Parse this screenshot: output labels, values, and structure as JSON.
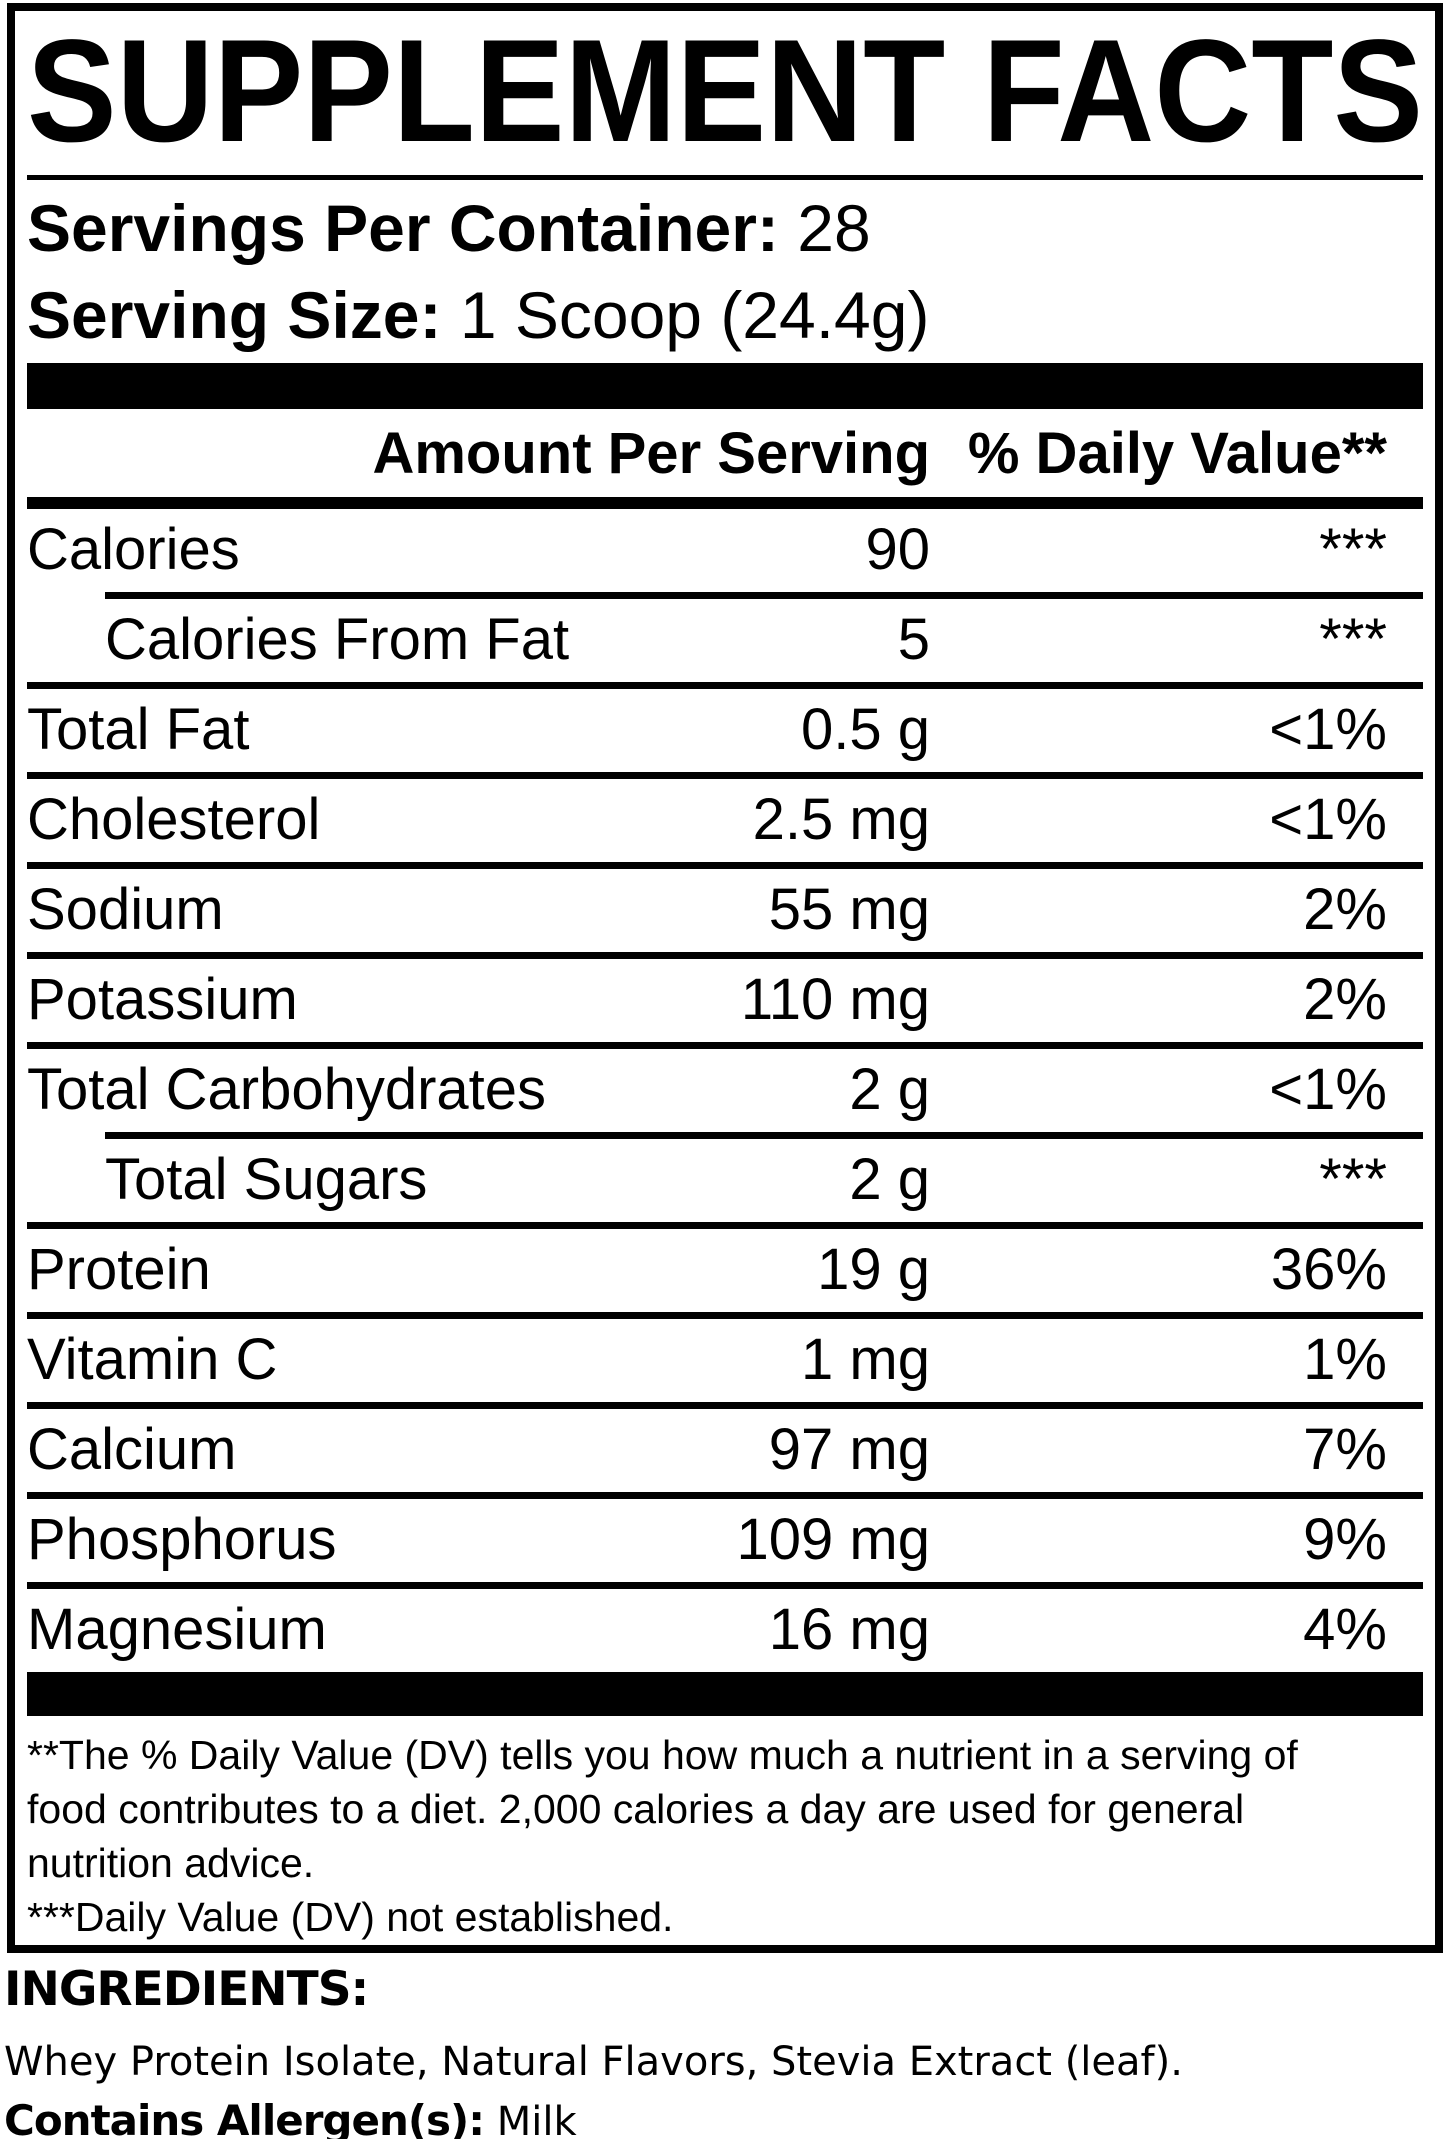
{
  "title": "SUPPLEMENT FACTS",
  "serving_info": {
    "servings_per_container_label": "Servings Per Container:",
    "servings_per_container_value": "28",
    "serving_size_label": "Serving Size:",
    "serving_size_value": "1 Scoop (24.4g)"
  },
  "table": {
    "header": {
      "amount": "Amount Per Serving",
      "daily_value": "% Daily Value**"
    },
    "rows": [
      {
        "label": "Calories",
        "amount": "90",
        "dv": "***",
        "indent": false
      },
      {
        "label": "Calories From Fat",
        "amount": "5",
        "dv": "***",
        "indent": true
      },
      {
        "label": "Total Fat",
        "amount": "0.5 g",
        "dv": "<1%",
        "indent": false
      },
      {
        "label": "Cholesterol",
        "amount": "2.5 mg",
        "dv": "<1%",
        "indent": false
      },
      {
        "label": "Sodium",
        "amount": "55 mg",
        "dv": "2%",
        "indent": false
      },
      {
        "label": "Potassium",
        "amount": "110 mg",
        "dv": "2%",
        "indent": false
      },
      {
        "label": "Total Carbohydrates",
        "amount": "2 g",
        "dv": "<1%",
        "indent": false
      },
      {
        "label": "Total Sugars",
        "amount": "2 g",
        "dv": "***",
        "indent": true
      },
      {
        "label": "Protein",
        "amount": "19 g",
        "dv": "36%",
        "indent": false
      },
      {
        "label": "Vitamin C",
        "amount": "1 mg",
        "dv": "1%",
        "indent": false
      },
      {
        "label": "Calcium",
        "amount": "97 mg",
        "dv": "7%",
        "indent": false
      },
      {
        "label": "Phosphorus",
        "amount": "109 mg",
        "dv": "9%",
        "indent": false
      },
      {
        "label": "Magnesium",
        "amount": "16 mg",
        "dv": "4%",
        "indent": false
      }
    ]
  },
  "footnotes": [
    "**The % Daily Value (DV) tells you how much a nutrient in a serving of food contributes to a diet. 2,000 calories a day are used for general nutrition advice.",
    "***Daily Value (DV) not established."
  ],
  "ingredients": {
    "heading": "INGREDIENTS:",
    "list": "Whey Protein Isolate, Natural Flavors, Stevia Extract (leaf).",
    "allergen_label": "Contains Allergen(s):",
    "allergen_value": "Milk"
  },
  "colors": {
    "ink": "#000000",
    "background": "#ffffff"
  }
}
